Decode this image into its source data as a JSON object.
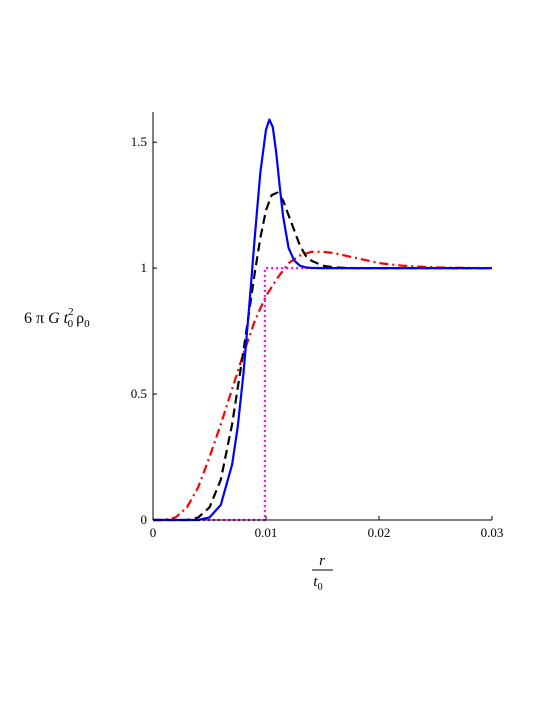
{
  "chart_data": {
    "type": "line",
    "title": "",
    "xlabel": {
      "numerator": "r",
      "denominator_base": "t",
      "denominator_sub": "0"
    },
    "ylabel": {
      "prefix": "6 π ",
      "G": "G",
      "t": "t",
      "t_sub": "0",
      "t_sup": "2",
      "rho": "ρ",
      "rho_sub": "0"
    },
    "xlim": [
      0,
      0.03
    ],
    "ylim": [
      0,
      1.62
    ],
    "xticks": [
      {
        "value": 0,
        "label": "0"
      },
      {
        "value": 0.01,
        "label": "0.01"
      },
      {
        "value": 0.02,
        "label": "0.02"
      },
      {
        "value": 0.03,
        "label": "0.03"
      }
    ],
    "yticks": [
      {
        "value": 0,
        "label": "0"
      },
      {
        "value": 0.5,
        "label": "0.5"
      },
      {
        "value": 1,
        "label": "1"
      },
      {
        "value": 1.5,
        "label": "1.5"
      }
    ],
    "grid": false,
    "legend": "none",
    "series": [
      {
        "color": "#ff00ff",
        "style": "dotted",
        "x": [
          0,
          0.0099,
          0.0099,
          0.03
        ],
        "y": [
          0,
          0,
          1.0,
          1.0
        ]
      },
      {
        "color": "#ff0000",
        "style": "dashdot",
        "x": [
          0,
          0.001,
          0.002,
          0.003,
          0.004,
          0.005,
          0.006,
          0.007,
          0.008,
          0.009,
          0.01,
          0.011,
          0.012,
          0.013,
          0.014,
          0.015,
          0.016,
          0.017,
          0.018,
          0.019,
          0.02,
          0.022,
          0.024,
          0.026,
          0.028,
          0.03
        ],
        "y": [
          0,
          0.0,
          0.01,
          0.05,
          0.13,
          0.25,
          0.38,
          0.52,
          0.66,
          0.79,
          0.89,
          0.96,
          1.02,
          1.05,
          1.065,
          1.065,
          1.06,
          1.05,
          1.04,
          1.03,
          1.02,
          1.01,
          1.005,
          1.002,
          1.001,
          1.0
        ]
      },
      {
        "color": "#000000",
        "style": "dashed",
        "x": [
          0,
          0.003,
          0.004,
          0.005,
          0.006,
          0.007,
          0.008,
          0.009,
          0.0095,
          0.01,
          0.0105,
          0.011,
          0.0115,
          0.012,
          0.0125,
          0.013,
          0.0135,
          0.014,
          0.015,
          0.016,
          0.017,
          0.018,
          0.02,
          0.025,
          0.03
        ],
        "y": [
          0,
          0.0,
          0.01,
          0.05,
          0.16,
          0.38,
          0.67,
          0.98,
          1.12,
          1.23,
          1.29,
          1.3,
          1.27,
          1.21,
          1.15,
          1.09,
          1.05,
          1.03,
          1.01,
          1.003,
          1.001,
          1.0,
          1.0,
          1.0,
          1.0
        ]
      },
      {
        "color": "#0000ff",
        "style": "solid",
        "x": [
          0,
          0.004,
          0.005,
          0.006,
          0.007,
          0.0075,
          0.008,
          0.0085,
          0.009,
          0.0095,
          0.01,
          0.0103,
          0.0106,
          0.0109,
          0.0112,
          0.0115,
          0.012,
          0.0125,
          0.013,
          0.0135,
          0.014,
          0.015,
          0.016,
          0.018,
          0.02,
          0.025,
          0.03
        ],
        "y": [
          0,
          0.0,
          0.01,
          0.06,
          0.22,
          0.37,
          0.58,
          0.84,
          1.12,
          1.38,
          1.55,
          1.59,
          1.56,
          1.46,
          1.33,
          1.21,
          1.08,
          1.03,
          1.01,
          1.003,
          1.001,
          1.0,
          1.0,
          1.0,
          1.0,
          1.0,
          1.0
        ]
      }
    ]
  }
}
